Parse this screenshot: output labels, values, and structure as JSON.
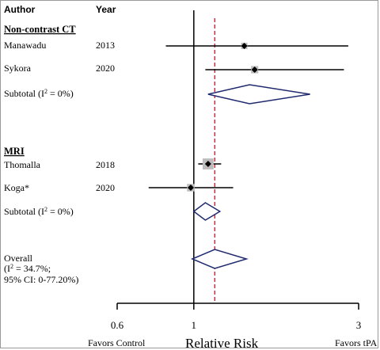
{
  "chart_data": {
    "type": "forest",
    "headers": {
      "author": "Author",
      "year": "Year"
    },
    "x_scale": "log",
    "xlim": [
      0.6,
      3
    ],
    "ticks": [
      "0.6",
      "1",
      "3"
    ],
    "xlabel": "Relative Risk",
    "left_label": "Favors Control",
    "right_label": "Favors tPA",
    "null_value": 1,
    "overall_line": 1.15,
    "groups": [
      {
        "name": "Non-contrast CT",
        "studies": [
          {
            "author": "Manawadu",
            "year": "2013",
            "estimate": 1.4,
            "lower": 0.83,
            "upper": 2.8,
            "weight": 1
          },
          {
            "author": "Sykora",
            "year": "2020",
            "estimate": 1.5,
            "lower": 1.08,
            "upper": 2.72,
            "weight": 1.3
          }
        ],
        "subtotal": {
          "label": "Subtotal (I",
          "label_tail": " = 0%)",
          "estimate": 1.45,
          "lower": 1.1,
          "upper": 2.17
        }
      },
      {
        "name": "MRI",
        "studies": [
          {
            "author": "Thomalla",
            "year": "2018",
            "estimate": 1.1,
            "lower": 1.03,
            "upper": 1.2,
            "weight": 3
          },
          {
            "author": "Koga*",
            "year": "2020",
            "estimate": 0.98,
            "lower": 0.74,
            "upper": 1.3,
            "weight": 1.4
          }
        ],
        "subtotal": {
          "label": "Subtotal (I",
          "label_tail": " = 0%)",
          "estimate": 1.08,
          "lower": 1.0,
          "upper": 1.19
        }
      }
    ],
    "overall": {
      "label_lines": [
        "Overall",
        "(I",
        " = 34.7%;",
        "95% CI: 0-77.20%)"
      ],
      "estimate": 1.15,
      "lower": 0.99,
      "upper": 1.42
    }
  }
}
